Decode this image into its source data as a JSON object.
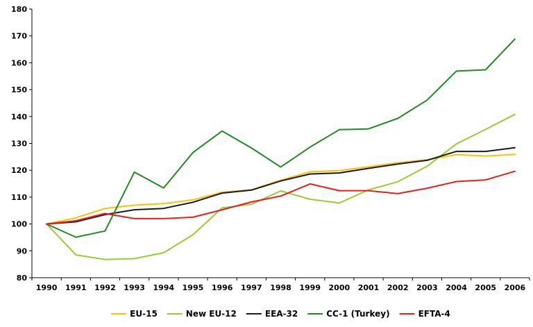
{
  "chart_data": {
    "type": "line",
    "title": "",
    "xlabel": "",
    "ylabel": "",
    "x": [
      "1990",
      "1991",
      "1992",
      "1993",
      "1994",
      "1995",
      "1996",
      "1997",
      "1998",
      "1999",
      "2000",
      "2001",
      "2002",
      "2003",
      "2004",
      "2005",
      "2006"
    ],
    "ylim": [
      80,
      180
    ],
    "yticks": [
      80,
      90,
      100,
      110,
      120,
      130,
      140,
      150,
      160,
      170,
      180
    ],
    "grid": false,
    "legend_position": "bottom",
    "series": [
      {
        "name": "EU-15",
        "color": "#FFC000",
        "values": [
          100,
          102.3,
          105.8,
          107.0,
          107.6,
          109.0,
          111.8,
          112.7,
          116.3,
          119.4,
          119.9,
          121.3,
          122.8,
          123.9,
          125.8,
          125.3,
          125.9
        ]
      },
      {
        "name": "New EU-12",
        "color": "#99CC33",
        "values": [
          100,
          88.5,
          86.8,
          87.1,
          89.3,
          96.0,
          106.0,
          107.3,
          112.3,
          109.2,
          107.8,
          112.7,
          115.7,
          121.5,
          129.8,
          135.2,
          140.8
        ]
      },
      {
        "name": "EEA-32",
        "color": "#1A1A1A",
        "values": [
          100,
          100.8,
          103.5,
          105.3,
          105.8,
          108.1,
          111.5,
          112.6,
          116.0,
          118.6,
          119.0,
          120.7,
          122.3,
          123.7,
          127.0,
          127.0,
          128.4
        ]
      },
      {
        "name": "CC-1 (Turkey)",
        "color": "#1E8C1E",
        "values": [
          100,
          95.1,
          97.4,
          119.3,
          113.4,
          126.6,
          134.6,
          128.3,
          121.2,
          128.6,
          135.1,
          135.4,
          139.3,
          146.1,
          156.9,
          157.4,
          168.8
        ]
      },
      {
        "name": "EFTA-4",
        "color": "#EE1C1C",
        "values": [
          100,
          101.2,
          103.9,
          102.0,
          102.0,
          102.5,
          105.3,
          108.2,
          110.4,
          114.9,
          112.4,
          112.4,
          111.3,
          113.3,
          115.8,
          116.4,
          119.6
        ]
      }
    ]
  }
}
